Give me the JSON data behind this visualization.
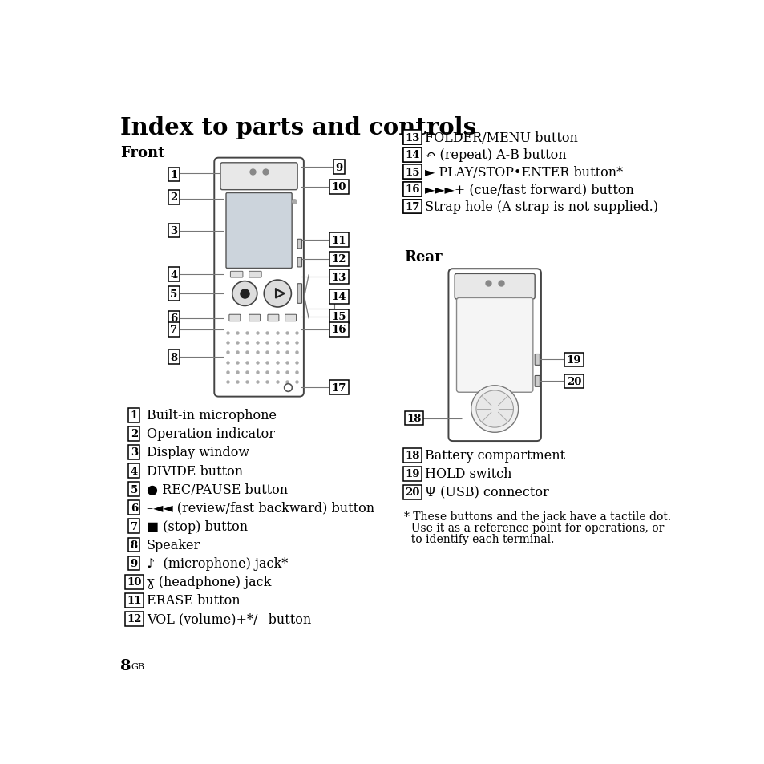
{
  "title": "Index to parts and controls",
  "bg_color": "#ffffff",
  "text_color": "#000000",
  "section_front": "Front",
  "section_rear": "Rear",
  "left_items": [
    [
      "1",
      "Built-in microphone"
    ],
    [
      "2",
      "Operation indicator"
    ],
    [
      "3",
      "Display window"
    ],
    [
      "4",
      "DIVIDE button"
    ],
    [
      "5",
      "● REC/PAUSE button"
    ],
    [
      "6",
      "–◄◄ (review/fast backward) button"
    ],
    [
      "7",
      "■ (stop) button"
    ],
    [
      "8",
      "Speaker"
    ],
    [
      "9",
      "♪  (microphone) jack*"
    ],
    [
      "10",
      "ɣ (headphone) jack"
    ],
    [
      "11",
      "ERASE button"
    ],
    [
      "12",
      "VOL (volume)+*/– button"
    ]
  ],
  "right_items": [
    [
      "13",
      "FOLDER/MENU button"
    ],
    [
      "14",
      "↶ (repeat) A-B button"
    ],
    [
      "15",
      "► PLAY/STOP•ENTER button*"
    ],
    [
      "16",
      "►►►+ (cue/fast forward) button"
    ],
    [
      "17",
      "Strap hole (A strap is not supplied.)"
    ]
  ],
  "rear_items": [
    [
      "18",
      "Battery compartment"
    ],
    [
      "19",
      "HOLD switch"
    ],
    [
      "20",
      "Ψ (USB) connector"
    ]
  ],
  "footnote_line1": "* These buttons and the jack have a tactile dot.",
  "footnote_line2": "  Use it as a reference point for operations, or",
  "footnote_line3": "  to identify each terminal.",
  "page_number": "8",
  "page_suffix": "GB"
}
